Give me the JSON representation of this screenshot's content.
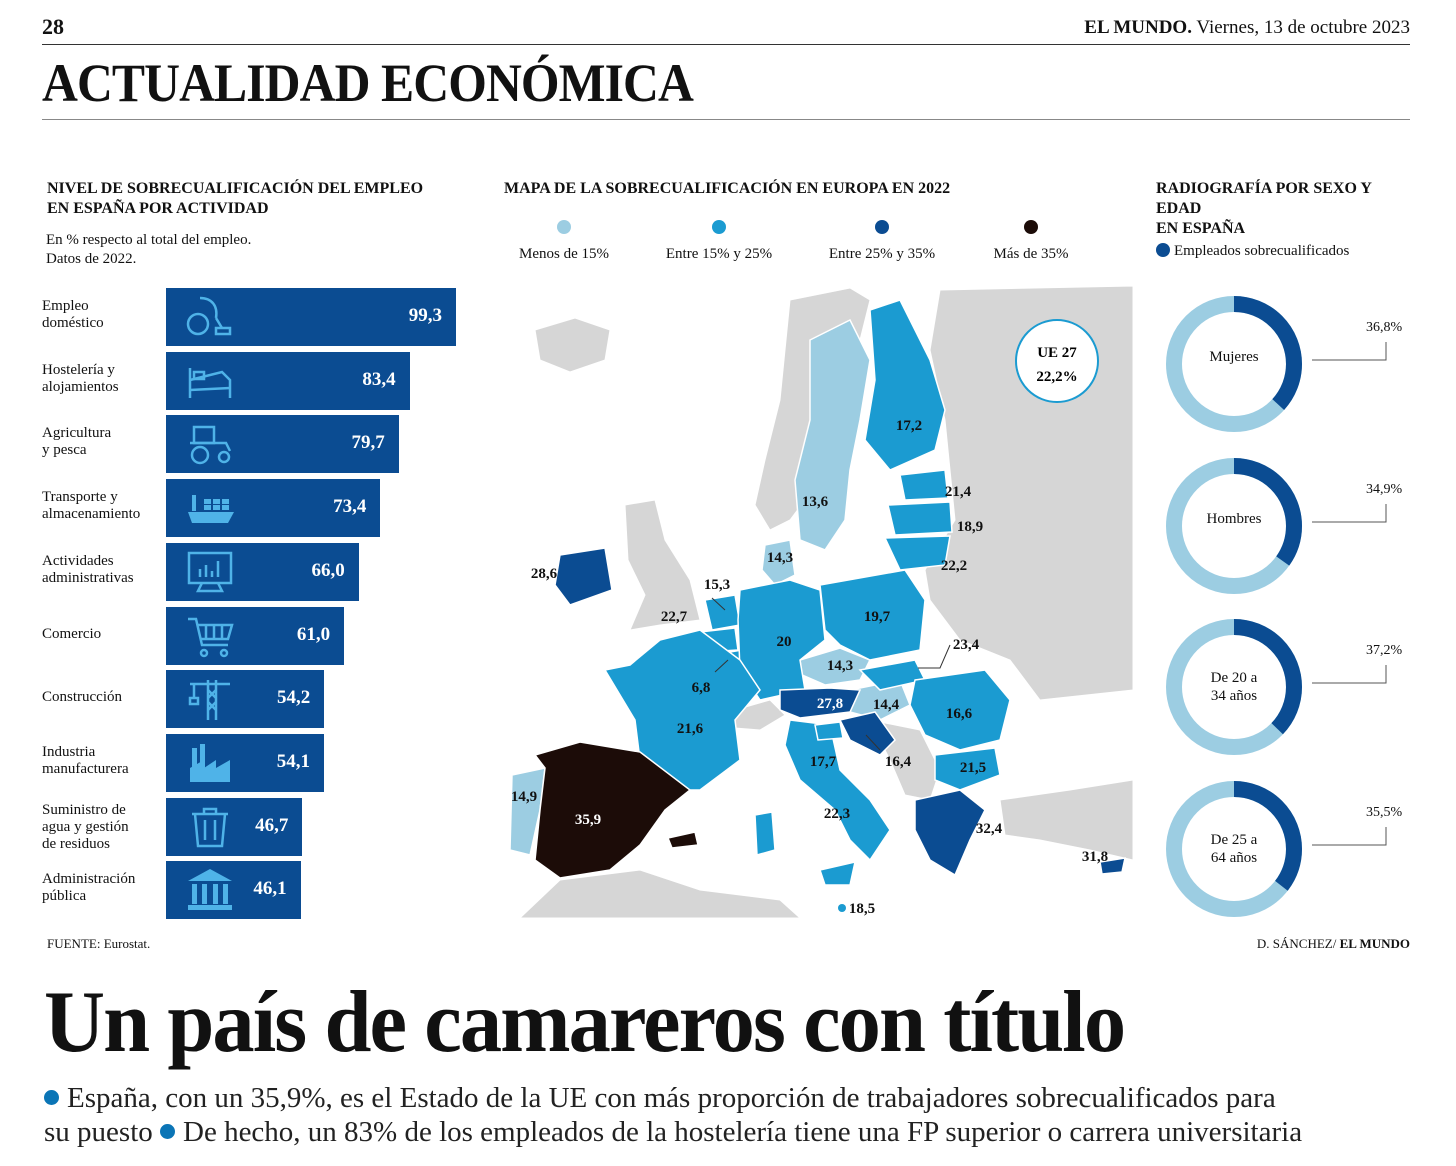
{
  "header": {
    "page_number": "28",
    "newspaper": "EL MUNDO.",
    "date": "Viernes, 13 de octubre 2023",
    "section": "ACTUALIDAD ECONÓMICA"
  },
  "left_panel": {
    "title_line1": "NIVEL DE SOBRECUALIFICACIÓN DEL EMPLEO",
    "title_line2": "EN ESPAÑA POR ACTIVIDAD",
    "note_line1": "En % respecto al total del empleo.",
    "note_line2": "Datos de 2022.",
    "bars": [
      {
        "label": [
          "Empleo",
          "doméstico"
        ],
        "value": "99,3",
        "icon": "vacuum-cleaner-icon"
      },
      {
        "label": [
          "Hostelería y",
          "alojamientos"
        ],
        "value": "83,4",
        "icon": "bed-icon"
      },
      {
        "label": [
          "Agricultura",
          "y pesca"
        ],
        "value": "79,7",
        "icon": "tractor-icon"
      },
      {
        "label": [
          "Transporte y",
          "almacenamiento"
        ],
        "value": "73,4",
        "icon": "cargo-ship-icon"
      },
      {
        "label": [
          "Actividades",
          "administrativas"
        ],
        "value": "66,0",
        "icon": "monitor-chart-icon"
      },
      {
        "label": [
          "Comercio"
        ],
        "value": "61,0",
        "icon": "shopping-cart-icon"
      },
      {
        "label": [
          "Construcción"
        ],
        "value": "54,2",
        "icon": "crane-icon"
      },
      {
        "label": [
          "Industria",
          "manufacturera"
        ],
        "value": "54,1",
        "icon": "factory-icon"
      },
      {
        "label": [
          "Suministro de",
          "agua y gestión",
          "de residuos"
        ],
        "value": "46,7",
        "icon": "trash-bin-icon"
      },
      {
        "label": [
          "Administración",
          "pública"
        ],
        "value": "46,1",
        "icon": "government-building-icon"
      }
    ],
    "source": "FUENTE: Eurostat."
  },
  "map_panel": {
    "title": "MAPA DE LA SOBRECUALIFICACIÓN EN EUROPA EN 2022",
    "legend": [
      {
        "label": "Menos de 15%",
        "color": "#9ccde2"
      },
      {
        "label": "Entre 15% y 25%",
        "color": "#1b9bd1"
      },
      {
        "label": "Entre 25% y 35%",
        "color": "#0b4c92"
      },
      {
        "label": "Más de 35%",
        "color": "#1c0c08"
      }
    ],
    "eu_label": "UE 27",
    "eu_value": "22,2%",
    "values": [
      "17,2",
      "13,6",
      "21,4",
      "18,9",
      "22,2",
      "14,3",
      "28,6",
      "15,3",
      "22,7",
      "20",
      "19,7",
      "23,4",
      "14,3",
      "6,8",
      "27,8",
      "14,4",
      "16,6",
      "21,6",
      "17,7",
      "16,4",
      "21,5",
      "14,9",
      "35,9",
      "22,3",
      "32,4",
      "31,8",
      "18,5"
    ]
  },
  "right_panel": {
    "title_line1": "RADIOGRAFÍA POR SEXO Y EDAD",
    "title_line2": "EN ESPAÑA",
    "legend_label": "Empleados sobrecualificados",
    "donuts": [
      {
        "label": [
          "Mujeres"
        ],
        "pct_text": "36,8%",
        "value": 36.8
      },
      {
        "label": [
          "Hombres"
        ],
        "pct_text": "34,9%",
        "value": 34.9
      },
      {
        "label": [
          "De 20 a",
          "34 años"
        ],
        "pct_text": "37,2%",
        "value": 37.2
      },
      {
        "label": [
          "De 25 a",
          "64 años"
        ],
        "pct_text": "35,5%",
        "value": 35.5
      }
    ],
    "credit_author": "D. SÁNCHEZ/",
    "credit_paper": "EL MUNDO"
  },
  "article": {
    "headline": "Un país de camareros con título",
    "deck_line1": "España, con un 35,9%, es el Estado de la UE con más proporción de trabajadores sobrecualificados para",
    "deck_line2a": "su puesto",
    "deck_line2b": "De hecho, un 83% de los empleados de la hostelería tiene una FP superior o carrera universitaria"
  },
  "colors": {
    "bar": "#0b4c92",
    "donut_dark": "#0b4c92",
    "donut_light": "#9ccde2",
    "land_grey": "#d6d6d6"
  }
}
